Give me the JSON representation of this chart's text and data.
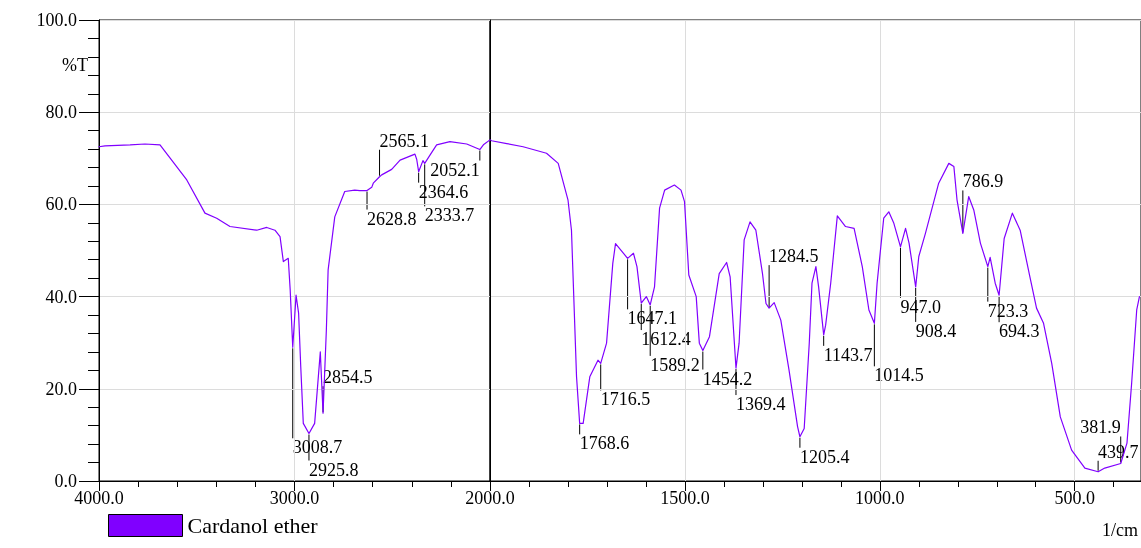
{
  "chart_data": [
    {
      "type": "line",
      "ylabel": "%T",
      "x": [
        4000,
        3969,
        3841,
        3765,
        3688,
        3551,
        3458,
        3398,
        3330,
        3193,
        3142,
        3100,
        3074,
        3057,
        3032,
        3022,
        3009,
        2992,
        2979,
        2968,
        2955,
        2926,
        2897,
        2868,
        2854,
        2837,
        2828,
        2794,
        2743,
        2692,
        2666,
        2629,
        2605,
        2597,
        2565,
        2554,
        2503,
        2460,
        2384,
        2375,
        2365,
        2343,
        2334,
        2307,
        2273,
        2205,
        2119,
        2052,
        2032,
        2000
      ],
      "series": [
        {
          "name": "Cardanol ether",
          "color": "#8000ff",
          "values": [
            72.5,
            72.7,
            72.9,
            73.1,
            72.9,
            65.3,
            58.1,
            57.0,
            55.2,
            54.4,
            55.0,
            54.4,
            53.0,
            47.6,
            48.3,
            41.4,
            29.0,
            40.3,
            36.4,
            24.8,
            12.5,
            10.3,
            12.5,
            28.0,
            14.7,
            32.8,
            45.8,
            57.3,
            62.8,
            63.1,
            63.0,
            63.0,
            63.7,
            64.6,
            66.0,
            66.4,
            67.6,
            69.6,
            70.9,
            69.8,
            67.1,
            69.5,
            68.9,
            70.7,
            72.9,
            73.6,
            73.1,
            71.9,
            73.0,
            74.0
          ]
        }
      ],
      "xlim": [
        4000,
        2000
      ],
      "xticks": [
        {
          "value": 4000,
          "label": "4000.0"
        },
        {
          "value": 3000,
          "label": "3000.0"
        }
      ],
      "ylim": [
        0,
        100
      ],
      "yticks": [
        {
          "value": 0,
          "label": "0.0"
        },
        {
          "value": 20,
          "label": "20.0"
        },
        {
          "value": 40,
          "label": "40.0"
        },
        {
          "value": 60,
          "label": "60.0"
        },
        {
          "value": 80,
          "label": "80.0"
        },
        {
          "value": 100,
          "label": "100.0"
        }
      ],
      "grid": true,
      "legend": "bottom left",
      "marker": "none",
      "line_style": "solid",
      "annotations": [
        {
          "text": "3008.7",
          "x": 3009,
          "y": 29.0
        },
        {
          "text": "2925.8",
          "x": 2926,
          "y": 10.3
        },
        {
          "text": "2854.5",
          "x": 2854,
          "y": 14.7
        },
        {
          "text": "2628.8",
          "x": 2629,
          "y": 63.0
        },
        {
          "text": "2565.1",
          "x": 2565,
          "y": 66.0
        },
        {
          "text": "2364.6",
          "x": 2365,
          "y": 67.1
        },
        {
          "text": "2333.7",
          "x": 2334,
          "y": 68.9
        },
        {
          "text": "2052.1",
          "x": 2052,
          "y": 71.9
        }
      ]
    },
    {
      "type": "line",
      "xlabel": "1/cm",
      "tick_labels": "x",
      "x": [
        2000,
        1996,
        1957,
        1915,
        1855,
        1825,
        1800,
        1791,
        1778,
        1770,
        1761,
        1744,
        1723,
        1716,
        1701,
        1685,
        1678,
        1647,
        1632,
        1623,
        1612,
        1599,
        1589,
        1578,
        1565,
        1552,
        1527,
        1510,
        1501,
        1490,
        1471,
        1463,
        1454,
        1437,
        1412,
        1393,
        1384,
        1369,
        1361,
        1348,
        1333,
        1318,
        1301,
        1292,
        1284,
        1271,
        1254,
        1233,
        1211,
        1205,
        1194,
        1181,
        1174,
        1164,
        1157,
        1144,
        1139,
        1126,
        1109,
        1088,
        1066,
        1045,
        1028,
        1014,
        1007,
        990,
        977,
        964,
        947,
        934,
        925,
        908,
        900,
        883,
        849,
        823,
        810,
        802,
        787,
        772,
        759,
        742,
        723,
        717,
        704,
        694,
        681,
        660,
        640,
        615,
        598,
        580,
        559,
        537,
        508,
        474,
        440,
        423,
        382,
        366,
        354,
        341,
        334
      ],
      "series": [
        {
          "color": "#8000ff",
          "values": [
            74.0,
            73.8,
            73.2,
            72.5,
            71.1,
            68.9,
            61.0,
            54.4,
            22.6,
            12.5,
            12.5,
            22.6,
            26.2,
            25.5,
            29.9,
            47.2,
            51.5,
            48.3,
            49.4,
            46.5,
            38.6,
            40.0,
            38.2,
            42.1,
            59.2,
            63.1,
            64.2,
            63.1,
            60.6,
            44.7,
            40.0,
            29.9,
            28.3,
            31.3,
            45.0,
            47.4,
            44.3,
            24.5,
            29.9,
            52.3,
            56.2,
            54.4,
            45.0,
            38.5,
            37.5,
            38.7,
            34.9,
            24.1,
            11.8,
            9.6,
            11.4,
            29.9,
            42.9,
            46.5,
            42.1,
            31.7,
            33.8,
            42.9,
            57.5,
            55.2,
            54.8,
            46.5,
            37.1,
            34.2,
            42.9,
            57.0,
            58.4,
            55.9,
            50.8,
            54.8,
            51.6,
            42.1,
            48.7,
            53.7,
            64.6,
            68.9,
            68.2,
            61.0,
            53.7,
            61.7,
            58.8,
            51.6,
            46.5,
            48.5,
            42.9,
            40.3,
            52.6,
            58.1,
            54.4,
            44.3,
            37.5,
            34.2,
            25.5,
            13.9,
            6.7,
            2.8,
            2.0,
            2.8,
            3.8,
            8.2,
            21.2,
            37.1,
            40.0
          ]
        }
      ],
      "xlim": [
        2000,
        330
      ],
      "xticks": [
        {
          "value": 2000,
          "label": "2000.0"
        },
        {
          "value": 1500,
          "label": "1500.0"
        },
        {
          "value": 1000,
          "label": "1000.0"
        },
        {
          "value": 500,
          "label": "500.0"
        }
      ],
      "ylim": [
        0,
        100
      ],
      "yticks": [
        {
          "value": 0,
          "label": null
        },
        {
          "value": 20,
          "label": null
        },
        {
          "value": 40,
          "label": null
        },
        {
          "value": 60,
          "label": null
        },
        {
          "value": 80,
          "label": null
        },
        {
          "value": 100,
          "label": null
        }
      ],
      "grid": true,
      "marker": "none",
      "line_style": "solid",
      "annotations": [
        {
          "text": "1768.6",
          "x": 1770,
          "y": 12.5
        },
        {
          "text": "1716.5",
          "x": 1716,
          "y": 25.5
        },
        {
          "text": "1647.1",
          "x": 1647,
          "y": 48.3
        },
        {
          "text": "1612.4",
          "x": 1612,
          "y": 38.6
        },
        {
          "text": "1589.2",
          "x": 1589,
          "y": 38.2
        },
        {
          "text": "1454.2",
          "x": 1454,
          "y": 28.3
        },
        {
          "text": "1369.4",
          "x": 1369,
          "y": 24.5
        },
        {
          "text": "1284.5",
          "x": 1284,
          "y": 37.5
        },
        {
          "text": "1205.4",
          "x": 1205,
          "y": 9.6
        },
        {
          "text": "1143.7",
          "x": 1144,
          "y": 31.7
        },
        {
          "text": "1014.5",
          "x": 1014,
          "y": 34.2
        },
        {
          "text": "947.0",
          "x": 947,
          "y": 50.8
        },
        {
          "text": "908.4",
          "x": 908,
          "y": 42.1
        },
        {
          "text": "786.9",
          "x": 787,
          "y": 53.7
        },
        {
          "text": "723.3",
          "x": 723,
          "y": 46.5
        },
        {
          "text": "694.3",
          "x": 694,
          "y": 40.3
        },
        {
          "text": "439.7",
          "x": 440,
          "y": 2.0
        },
        {
          "text": "381.9",
          "x": 382,
          "y": 3.8
        }
      ]
    }
  ]
}
